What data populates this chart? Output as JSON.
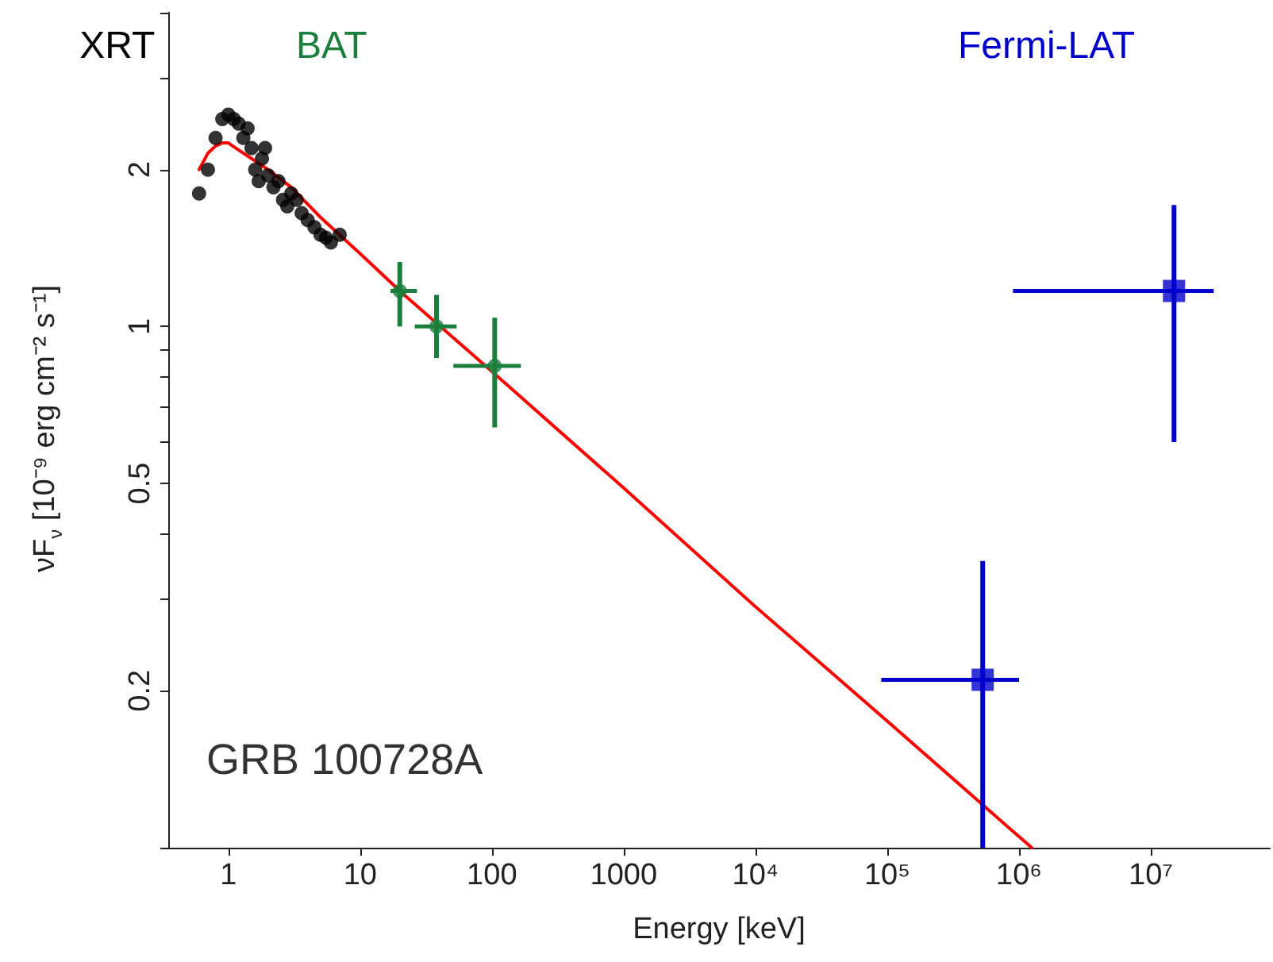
{
  "chart_data": {
    "type": "scatter",
    "xlabel": "Energy [keV]",
    "ylabel": "νF$_{ν}$ [10⁻⁹ erg cm⁻² s⁻¹]",
    "log": "xy",
    "xlim": [
      0.35,
      80000000
    ],
    "ylim": [
      0.1,
      4
    ],
    "xticks": [
      1,
      10,
      100,
      1000,
      {
        "value": 10000,
        "label": "10⁴"
      },
      {
        "value": 100000,
        "label": "10⁵"
      },
      {
        "value": 1000000,
        "label": "10⁶"
      },
      {
        "value": 10000000,
        "label": "10⁷"
      }
    ],
    "yticks": [
      {
        "value": 0.1,
        "label": null
      },
      0.2,
      {
        "value": 0.3,
        "label": null
      },
      {
        "value": 0.4,
        "label": null
      },
      0.5,
      {
        "value": 0.6,
        "label": null
      },
      {
        "value": 0.7,
        "label": null
      },
      {
        "value": 0.8,
        "label": null
      },
      {
        "value": 0.9,
        "label": null
      },
      1,
      2,
      {
        "value": 3,
        "label": null
      },
      {
        "value": 4,
        "label": null
      }
    ],
    "grid": false,
    "legend": "top",
    "annotations": [
      "GRB 100728A"
    ],
    "series": [
      {
        "name": "XRT",
        "color": "#000000",
        "marker": "circle",
        "x": [
          0.6,
          0.7,
          0.8,
          0.9,
          1.0,
          1.1,
          1.2,
          1.3,
          1.4,
          1.5,
          1.6,
          1.7,
          1.8,
          1.9,
          2.0,
          2.2,
          2.4,
          2.6,
          2.8,
          3.0,
          3.3,
          3.6,
          4.0,
          4.5,
          5.0,
          5.5,
          6.0,
          7.0
        ],
        "values": [
          1.8,
          2.0,
          2.3,
          2.5,
          2.55,
          2.5,
          2.45,
          2.3,
          2.4,
          2.2,
          2.0,
          1.9,
          2.1,
          2.2,
          1.95,
          1.85,
          1.9,
          1.75,
          1.7,
          1.8,
          1.75,
          1.65,
          1.6,
          1.55,
          1.5,
          1.48,
          1.45,
          1.5
        ]
      },
      {
        "name": "BAT",
        "color": "#1a7f3c",
        "marker": "circle",
        "x": [
          20,
          38,
          105
        ],
        "values": [
          1.17,
          1.0,
          0.84
        ],
        "errors": [
          [
            1.0,
            1.33
          ],
          [
            0.87,
            1.15
          ],
          [
            0.64,
            1.04
          ]
        ],
        "xerrors": [
          [
            17,
            27
          ],
          [
            26,
            54
          ],
          [
            51,
            166
          ]
        ]
      },
      {
        "name": "Fermi-LAT",
        "color": "#0000cc",
        "marker": "square",
        "x": [
          530000,
          15000000
        ],
        "values": [
          0.21,
          1.17
        ],
        "errors": [
          [
            0.1,
            0.355
          ],
          [
            0.6,
            1.71
          ]
        ],
        "xerrors": [
          [
            90000,
            1000000
          ],
          [
            900000,
            30000000
          ]
        ]
      },
      {
        "type": "line",
        "color": "#ff0000",
        "marker": "none",
        "line_style": "solid",
        "x": [
          0.6,
          0.7,
          0.8,
          0.9,
          1.0,
          1.2,
          1.5,
          2,
          3,
          5,
          10,
          20,
          100,
          1000,
          10000,
          100000,
          1000000,
          1250000
        ],
        "values": [
          2.0,
          2.15,
          2.22,
          2.25,
          2.25,
          2.18,
          2.1,
          2.0,
          1.85,
          1.62,
          1.38,
          1.17,
          0.82,
          0.49,
          0.29,
          0.175,
          0.105,
          0.1
        ]
      }
    ]
  }
}
